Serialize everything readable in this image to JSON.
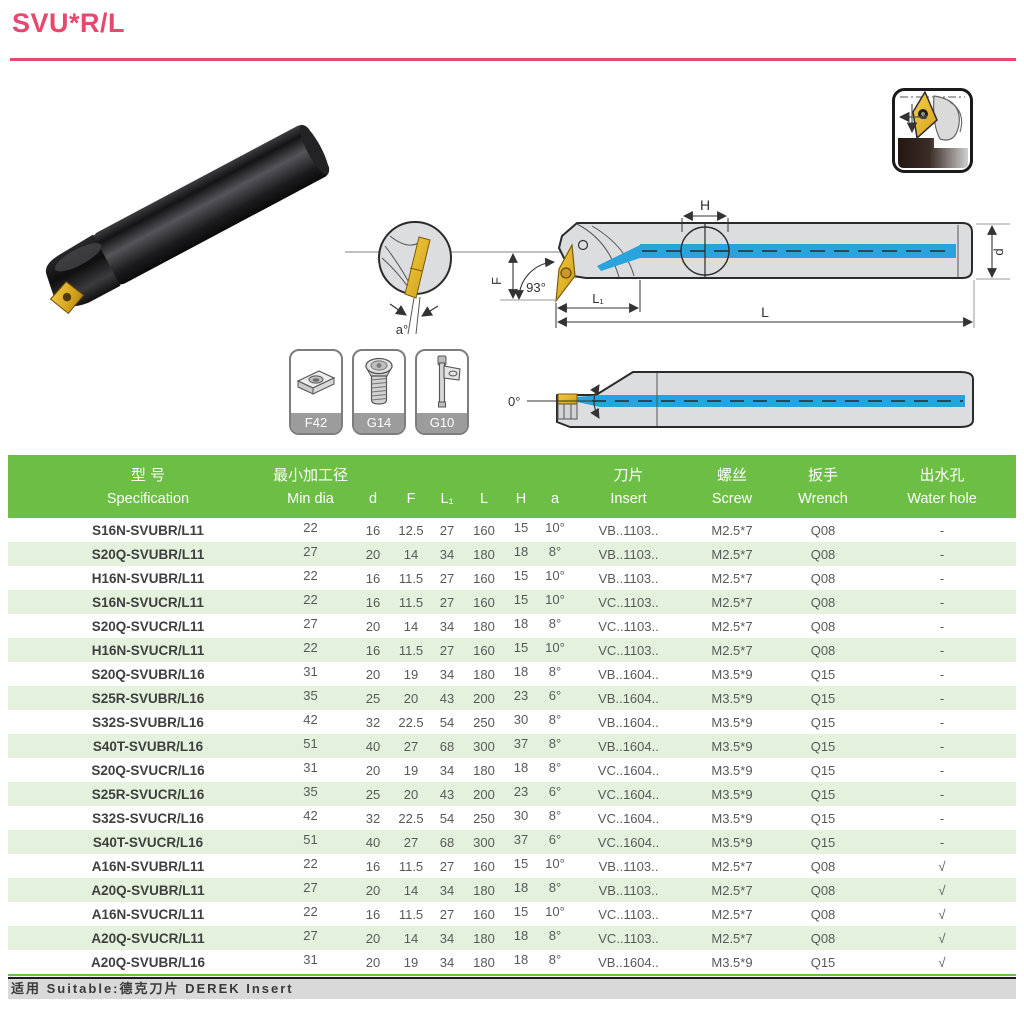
{
  "page": {
    "title": "SVU*R/L"
  },
  "colors": {
    "accent_pink": "#e8476e",
    "header_green": "#6cbe44",
    "row_tint": "#e4f2dd",
    "coolant_blue": "#29a3dc",
    "insert_gold": "#f0c12b"
  },
  "dimension_labels": {
    "angle_93": "93°",
    "H": "H",
    "F": "F",
    "L1": "L₁",
    "L": "L",
    "d": "d",
    "a_angle": "a°",
    "angle_0": "0°"
  },
  "accessory_cards": [
    {
      "code": "F42"
    },
    {
      "code": "G14"
    },
    {
      "code": "G10"
    }
  ],
  "table": {
    "header": {
      "spec_cn": "型 号",
      "spec_en": "Specification",
      "mindia_cn": "最小加工径",
      "mindia_en": "Min dia",
      "d": "d",
      "F": "F",
      "L1": "L₁",
      "L": "L",
      "H": "H",
      "a": "a",
      "insert_cn": "刀片",
      "insert_en": "Insert",
      "screw_cn": "螺丝",
      "screw_en": "Screw",
      "wrench_cn": "扳手",
      "wrench_en": "Wrench",
      "water_cn": "出水孔",
      "water_en": "Water hole"
    },
    "rows": [
      {
        "spec": "S16N-SVUBR/L11",
        "min_dia": "22",
        "d": "16",
        "f": "12.5",
        "l1": "27",
        "l": "160",
        "h": "15",
        "a": "10°",
        "insert": "VB..1103..",
        "screw": "M2.5*7",
        "wrench": "Q08",
        "water": "-"
      },
      {
        "spec": "S20Q-SVUBR/L11",
        "min_dia": "27",
        "d": "20",
        "f": "14",
        "l1": "34",
        "l": "180",
        "h": "18",
        "a": "8°",
        "insert": "VB..1103..",
        "screw": "M2.5*7",
        "wrench": "Q08",
        "water": "-"
      },
      {
        "spec": "H16N-SVUBR/L11",
        "min_dia": "22",
        "d": "16",
        "f": "11.5",
        "l1": "27",
        "l": "160",
        "h": "15",
        "a": "10°",
        "insert": "VB..1103..",
        "screw": "M2.5*7",
        "wrench": "Q08",
        "water": "-"
      },
      {
        "spec": "S16N-SVUCR/L11",
        "min_dia": "22",
        "d": "16",
        "f": "11.5",
        "l1": "27",
        "l": "160",
        "h": "15",
        "a": "10°",
        "insert": "VC..1103..",
        "screw": "M2.5*7",
        "wrench": "Q08",
        "water": "-"
      },
      {
        "spec": "S20Q-SVUCR/L11",
        "min_dia": "27",
        "d": "20",
        "f": "14",
        "l1": "34",
        "l": "180",
        "h": "18",
        "a": "8°",
        "insert": "VC..1103..",
        "screw": "M2.5*7",
        "wrench": "Q08",
        "water": "-"
      },
      {
        "spec": "H16N-SVUCR/L11",
        "min_dia": "22",
        "d": "16",
        "f": "11.5",
        "l1": "27",
        "l": "160",
        "h": "15",
        "a": "10°",
        "insert": "VC..1103..",
        "screw": "M2.5*7",
        "wrench": "Q08",
        "water": "-"
      },
      {
        "spec": "S20Q-SVUBR/L16",
        "min_dia": "31",
        "d": "20",
        "f": "19",
        "l1": "34",
        "l": "180",
        "h": "18",
        "a": "8°",
        "insert": "VB..1604..",
        "screw": "M3.5*9",
        "wrench": "Q15",
        "water": "-"
      },
      {
        "spec": "S25R-SVUBR/L16",
        "min_dia": "35",
        "d": "25",
        "f": "20",
        "l1": "43",
        "l": "200",
        "h": "23",
        "a": "6°",
        "insert": "VB..1604..",
        "screw": "M3.5*9",
        "wrench": "Q15",
        "water": "-"
      },
      {
        "spec": "S32S-SVUBR/L16",
        "min_dia": "42",
        "d": "32",
        "f": "22.5",
        "l1": "54",
        "l": "250",
        "h": "30",
        "a": "8°",
        "insert": "VB..1604..",
        "screw": "M3.5*9",
        "wrench": "Q15",
        "water": "-"
      },
      {
        "spec": "S40T-SVUBR/L16",
        "min_dia": "51",
        "d": "40",
        "f": "27",
        "l1": "68",
        "l": "300",
        "h": "37",
        "a": "8°",
        "insert": "VB..1604..",
        "screw": "M3.5*9",
        "wrench": "Q15",
        "water": "-"
      },
      {
        "spec": "S20Q-SVUCR/L16",
        "min_dia": "31",
        "d": "20",
        "f": "19",
        "l1": "34",
        "l": "180",
        "h": "18",
        "a": "8°",
        "insert": "VC..1604..",
        "screw": "M3.5*9",
        "wrench": "Q15",
        "water": "-"
      },
      {
        "spec": "S25R-SVUCR/L16",
        "min_dia": "35",
        "d": "25",
        "f": "20",
        "l1": "43",
        "l": "200",
        "h": "23",
        "a": "6°",
        "insert": "VC..1604..",
        "screw": "M3.5*9",
        "wrench": "Q15",
        "water": "-"
      },
      {
        "spec": "S32S-SVUCR/L16",
        "min_dia": "42",
        "d": "32",
        "f": "22.5",
        "l1": "54",
        "l": "250",
        "h": "30",
        "a": "8°",
        "insert": "VC..1604..",
        "screw": "M3.5*9",
        "wrench": "Q15",
        "water": "-"
      },
      {
        "spec": "S40T-SVUCR/L16",
        "min_dia": "51",
        "d": "40",
        "f": "27",
        "l1": "68",
        "l": "300",
        "h": "37",
        "a": "6°",
        "insert": "VC..1604..",
        "screw": "M3.5*9",
        "wrench": "Q15",
        "water": "-"
      },
      {
        "spec": "A16N-SVUBR/L11",
        "min_dia": "22",
        "d": "16",
        "f": "11.5",
        "l1": "27",
        "l": "160",
        "h": "15",
        "a": "10°",
        "insert": "VB..1103..",
        "screw": "M2.5*7",
        "wrench": "Q08",
        "water": "√"
      },
      {
        "spec": "A20Q-SVUBR/L11",
        "min_dia": "27",
        "d": "20",
        "f": "14",
        "l1": "34",
        "l": "180",
        "h": "18",
        "a": "8°",
        "insert": "VB..1103..",
        "screw": "M2.5*7",
        "wrench": "Q08",
        "water": "√"
      },
      {
        "spec": "A16N-SVUCR/L11",
        "min_dia": "22",
        "d": "16",
        "f": "11.5",
        "l1": "27",
        "l": "160",
        "h": "15",
        "a": "10°",
        "insert": "VC..1103..",
        "screw": "M2.5*7",
        "wrench": "Q08",
        "water": "√"
      },
      {
        "spec": "A20Q-SVUCR/L11",
        "min_dia": "27",
        "d": "20",
        "f": "14",
        "l1": "34",
        "l": "180",
        "h": "18",
        "a": "8°",
        "insert": "VC..1103..",
        "screw": "M2.5*7",
        "wrench": "Q08",
        "water": "√"
      },
      {
        "spec": "A20Q-SVUBR/L16",
        "min_dia": "31",
        "d": "20",
        "f": "19",
        "l1": "34",
        "l": "180",
        "h": "18",
        "a": "8°",
        "insert": "VB..1604..",
        "screw": "M3.5*9",
        "wrench": "Q15",
        "water": "√"
      }
    ]
  },
  "footer": {
    "note": "适用 Suitable:德克刀片 DEREK Insert"
  }
}
